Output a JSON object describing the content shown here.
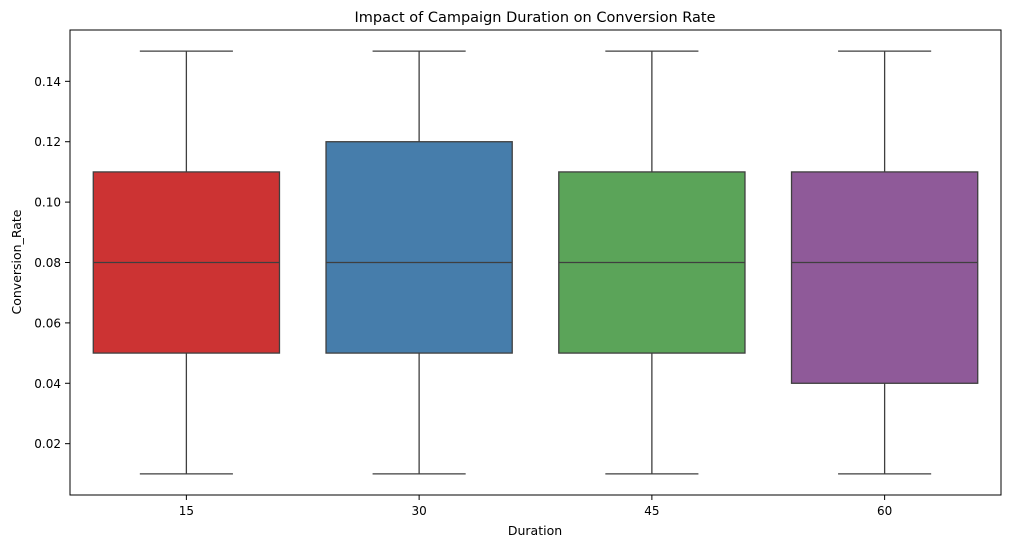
{
  "chart_data": {
    "type": "box",
    "title": "Impact of Campaign Duration on Conversion Rate",
    "xlabel": "Duration",
    "ylabel": "Conversion_Rate",
    "categories": [
      "15",
      "30",
      "45",
      "60"
    ],
    "boxes": [
      {
        "category": "15",
        "min": 0.01,
        "q1": 0.05,
        "median": 0.08,
        "q3": 0.11,
        "max": 0.15,
        "color": "#cc3333"
      },
      {
        "category": "30",
        "min": 0.01,
        "q1": 0.05,
        "median": 0.08,
        "q3": 0.12,
        "max": 0.15,
        "color": "#467dab"
      },
      {
        "category": "45",
        "min": 0.01,
        "q1": 0.05,
        "median": 0.08,
        "q3": 0.11,
        "max": 0.15,
        "color": "#5ba459"
      },
      {
        "category": "60",
        "min": 0.01,
        "q1": 0.04,
        "median": 0.08,
        "q3": 0.11,
        "max": 0.15,
        "color": "#8f5a99"
      }
    ],
    "yticks": [
      "0.02",
      "0.04",
      "0.06",
      "0.08",
      "0.10",
      "0.12",
      "0.14"
    ],
    "ylim": [
      0.003,
      0.157
    ],
    "grid": false
  }
}
